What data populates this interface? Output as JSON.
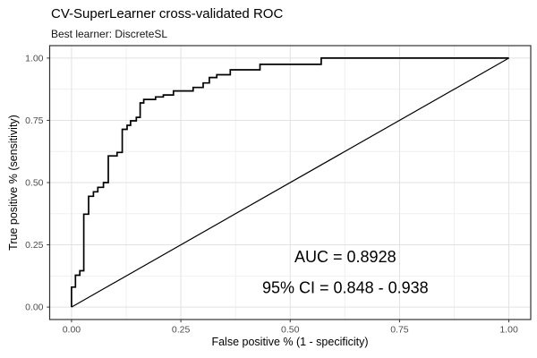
{
  "header": {
    "title": "CV-SuperLearner cross-validated ROC",
    "subtitle": "Best learner: DiscreteSL"
  },
  "colors": {
    "background": "#ffffff",
    "panel_background": "#ffffff",
    "panel_border": "#333333",
    "grid_major": "#e2e2e2",
    "grid_minor": "#f0f0f0",
    "tick_mark": "#333333",
    "tick_label": "#4d4d4d",
    "curve": "#000000",
    "diagonal": "#000000",
    "annotation_text": "#000000",
    "title_text": "#000000"
  },
  "chart_data": {
    "type": "line",
    "title": "CV-SuperLearner cross-validated ROC",
    "subtitle": "Best learner: DiscreteSL",
    "xlabel": "False positive % (1 - specificity)",
    "ylabel": "True positive % (sensitivity)",
    "xlim": [
      0,
      1
    ],
    "ylim": [
      0,
      1
    ],
    "grid": "on",
    "legend_position": "none",
    "x_ticks": [
      "0.00",
      "0.25",
      "0.50",
      "0.75",
      "1.00"
    ],
    "x_tick_values": [
      0,
      0.25,
      0.5,
      0.75,
      1.0
    ],
    "y_ticks": [
      "0.00",
      "0.25",
      "0.50",
      "0.75",
      "1.00"
    ],
    "y_tick_values": [
      0,
      0.25,
      0.5,
      0.75,
      1.0
    ],
    "series": [
      {
        "name": "roc-step-curve",
        "style": "step",
        "points": [
          [
            0.0,
            0.0
          ],
          [
            0.0,
            0.08
          ],
          [
            0.009,
            0.08
          ],
          [
            0.009,
            0.128
          ],
          [
            0.019,
            0.128
          ],
          [
            0.019,
            0.146
          ],
          [
            0.028,
            0.146
          ],
          [
            0.028,
            0.373
          ],
          [
            0.039,
            0.373
          ],
          [
            0.039,
            0.445
          ],
          [
            0.05,
            0.445
          ],
          [
            0.05,
            0.463
          ],
          [
            0.06,
            0.463
          ],
          [
            0.06,
            0.481
          ],
          [
            0.073,
            0.481
          ],
          [
            0.073,
            0.5
          ],
          [
            0.084,
            0.5
          ],
          [
            0.084,
            0.607
          ],
          [
            0.104,
            0.607
          ],
          [
            0.104,
            0.621
          ],
          [
            0.116,
            0.621
          ],
          [
            0.116,
            0.714
          ],
          [
            0.127,
            0.714
          ],
          [
            0.127,
            0.73
          ],
          [
            0.135,
            0.73
          ],
          [
            0.135,
            0.748
          ],
          [
            0.148,
            0.748
          ],
          [
            0.148,
            0.762
          ],
          [
            0.157,
            0.762
          ],
          [
            0.157,
            0.82
          ],
          [
            0.165,
            0.82
          ],
          [
            0.165,
            0.834
          ],
          [
            0.192,
            0.834
          ],
          [
            0.192,
            0.844
          ],
          [
            0.21,
            0.844
          ],
          [
            0.21,
            0.852
          ],
          [
            0.233,
            0.852
          ],
          [
            0.233,
            0.868
          ],
          [
            0.278,
            0.868
          ],
          [
            0.278,
            0.882
          ],
          [
            0.301,
            0.882
          ],
          [
            0.301,
            0.9
          ],
          [
            0.315,
            0.9
          ],
          [
            0.315,
            0.922
          ],
          [
            0.332,
            0.922
          ],
          [
            0.332,
            0.933
          ],
          [
            0.363,
            0.933
          ],
          [
            0.363,
            0.953
          ],
          [
            0.431,
            0.953
          ],
          [
            0.431,
            0.975
          ],
          [
            0.571,
            0.975
          ],
          [
            0.571,
            1.0
          ],
          [
            1.0,
            1.0
          ]
        ]
      },
      {
        "name": "chance-diagonal",
        "style": "straight",
        "points": [
          [
            0,
            0
          ],
          [
            1,
            1
          ]
        ]
      }
    ],
    "annotations": [
      {
        "text": "AUC = 0.8928",
        "x": 0.626,
        "y": 0.201
      },
      {
        "text": "95% CI = 0.848 - 0.938",
        "x": 0.626,
        "y": 0.077
      }
    ],
    "auc": 0.8928,
    "ci_low": 0.848,
    "ci_high": 0.938
  }
}
